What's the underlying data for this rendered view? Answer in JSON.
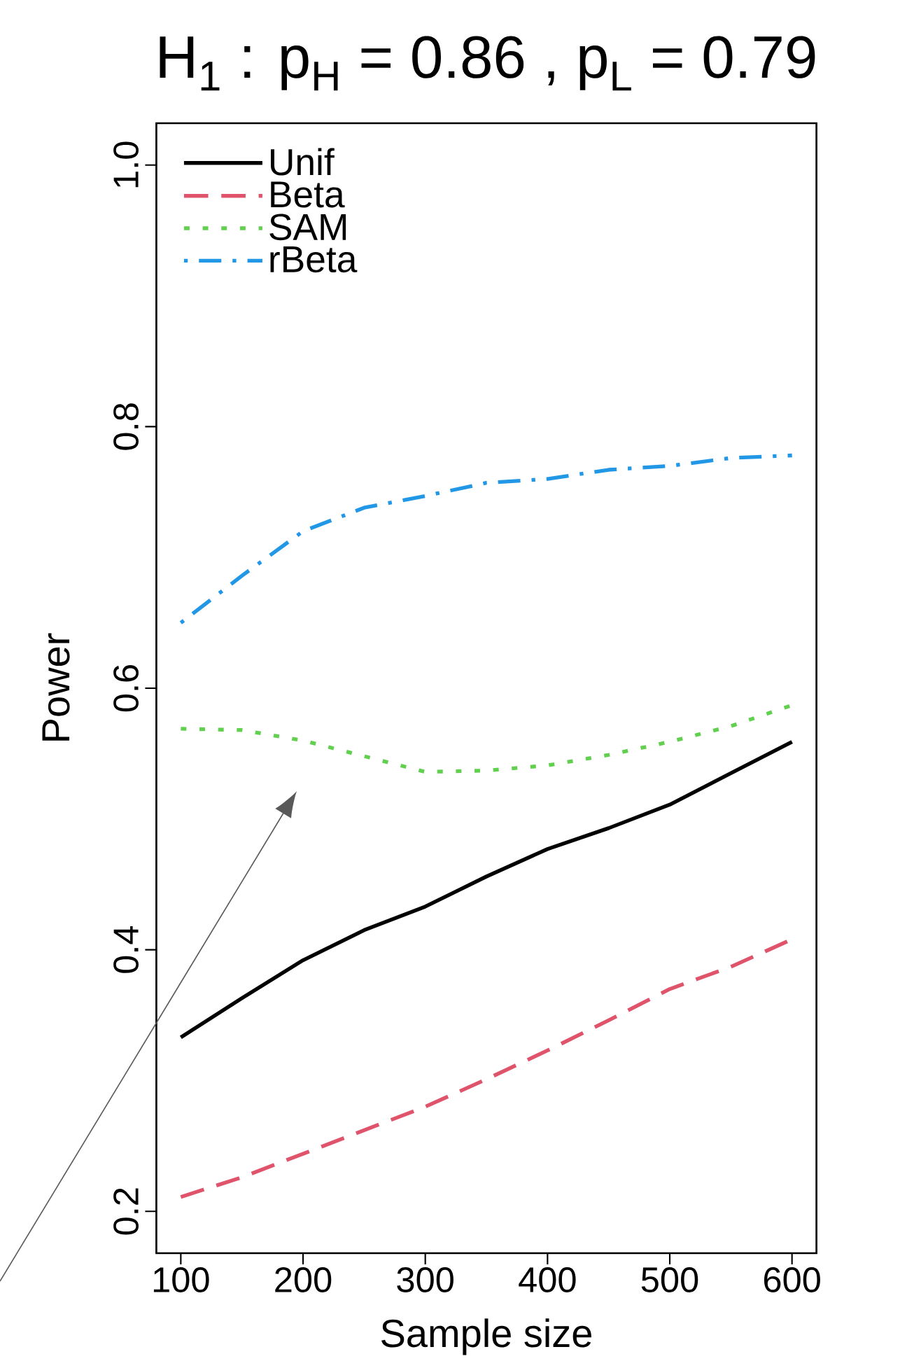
{
  "chart_data": {
    "type": "line",
    "title": "H$_{1}$ :  p$_{H}$ = 0.86 , p$_{L}$ = 0.79",
    "xlabel": "Sample size",
    "ylabel": "Power",
    "x": [
      100,
      150,
      200,
      250,
      300,
      350,
      400,
      450,
      500,
      550,
      600
    ],
    "series": [
      {
        "name": "Unif",
        "color": "#000000",
        "line_style": "solid",
        "values": [
          0.333,
          0.363,
          0.392,
          0.415,
          0.433,
          0.456,
          0.477,
          0.493,
          0.511,
          0.535,
          0.559
        ]
      },
      {
        "name": "Beta",
        "color": "#df536b",
        "line_style": "dashed",
        "values": [
          0.211,
          0.226,
          0.244,
          0.262,
          0.28,
          0.301,
          0.323,
          0.346,
          0.37,
          0.387,
          0.408
        ]
      },
      {
        "name": "SAM",
        "color": "#61d04f",
        "line_style": "dotted",
        "values": [
          0.569,
          0.568,
          0.56,
          0.548,
          0.536,
          0.537,
          0.541,
          0.549,
          0.559,
          0.571,
          0.587
        ]
      },
      {
        "name": "rBeta",
        "color": "#2297e6",
        "line_style": "dashdot",
        "values": [
          0.65,
          0.686,
          0.72,
          0.738,
          0.747,
          0.757,
          0.76,
          0.767,
          0.77,
          0.776,
          0.778
        ]
      }
    ],
    "xlim": [
      80,
      620
    ],
    "ylim": [
      0.168,
      1.032
    ],
    "xticks": [
      100,
      200,
      300,
      400,
      500,
      600
    ],
    "yticks": [
      {
        "value": 0.2,
        "label": "0.2"
      },
      {
        "value": 0.4,
        "label": "0.4"
      },
      {
        "value": 0.6,
        "label": "0.6"
      },
      {
        "value": 0.8,
        "label": "0.8"
      },
      {
        "value": 1.0,
        "label": "1.0"
      }
    ],
    "grid": false,
    "legend": "top left",
    "marker": "none"
  }
}
